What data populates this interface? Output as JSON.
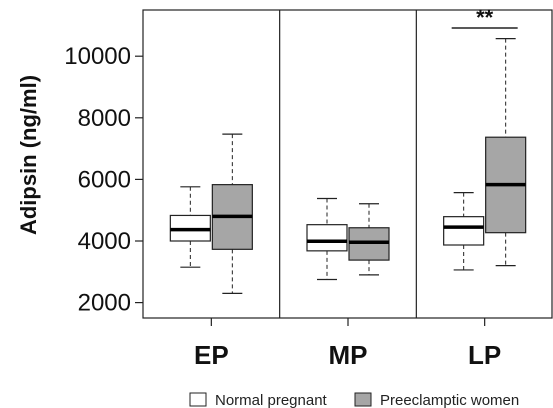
{
  "chart_data": {
    "type": "boxplot",
    "ylabel": "Adipsin (ng/ml)",
    "ylim": [
      1500,
      11500
    ],
    "yticks": [
      2000,
      4000,
      6000,
      8000,
      10000
    ],
    "categories": [
      "EP",
      "MP",
      "LP"
    ],
    "series": [
      {
        "name": "Normal pregnant",
        "color": "#ffffff",
        "boxes": [
          {
            "min": 3150,
            "q1": 4000,
            "median": 4370,
            "q3": 4830,
            "max": 5760
          },
          {
            "min": 2750,
            "q1": 3680,
            "median": 3990,
            "q3": 4530,
            "max": 5380
          },
          {
            "min": 3060,
            "q1": 3870,
            "median": 4450,
            "q3": 4790,
            "max": 5570
          }
        ]
      },
      {
        "name": "Preeclamptic women",
        "color": "#a6a6a6",
        "boxes": [
          {
            "min": 2300,
            "q1": 3730,
            "median": 4800,
            "q3": 5830,
            "max": 7470
          },
          {
            "min": 2900,
            "q1": 3380,
            "median": 3960,
            "q3": 4430,
            "max": 5210
          },
          {
            "min": 3200,
            "q1": 4270,
            "median": 5830,
            "q3": 7370,
            "max": 10570
          }
        ]
      }
    ],
    "annotations": [
      {
        "category": "LP",
        "text": "**"
      }
    ]
  }
}
